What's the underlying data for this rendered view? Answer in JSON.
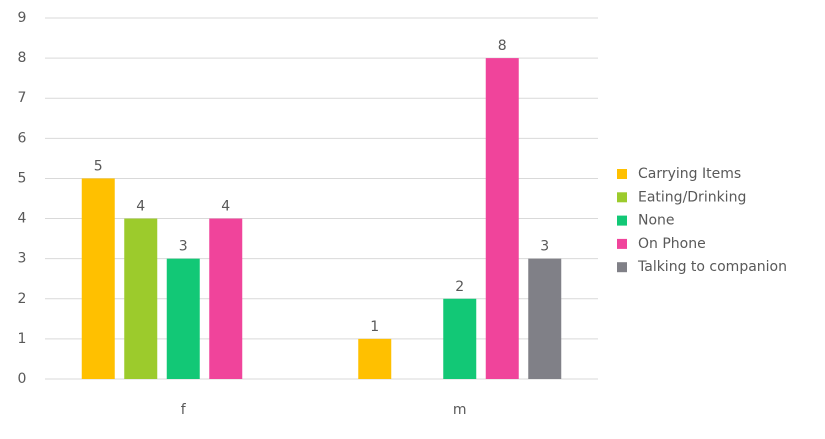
{
  "chart_data": {
    "type": "bar",
    "categories": [
      "f",
      "m"
    ],
    "series": [
      {
        "name": "Carrying Items",
        "color": "#ffc000",
        "values": [
          5,
          1
        ]
      },
      {
        "name": "Eating/Drinking",
        "color": "#9ccb2c",
        "values": [
          4,
          null
        ]
      },
      {
        "name": "None",
        "color": "#12c876",
        "values": [
          3,
          2
        ]
      },
      {
        "name": "On Phone",
        "color": "#f0449b",
        "values": [
          4,
          8
        ]
      },
      {
        "name": "Talking to companion",
        "color": "#808087",
        "values": [
          null,
          3
        ]
      }
    ],
    "ylim": [
      0,
      9
    ],
    "yticks": [
      0,
      1,
      2,
      3,
      4,
      5,
      6,
      7,
      8,
      9
    ],
    "grid": true,
    "legend": "right"
  }
}
